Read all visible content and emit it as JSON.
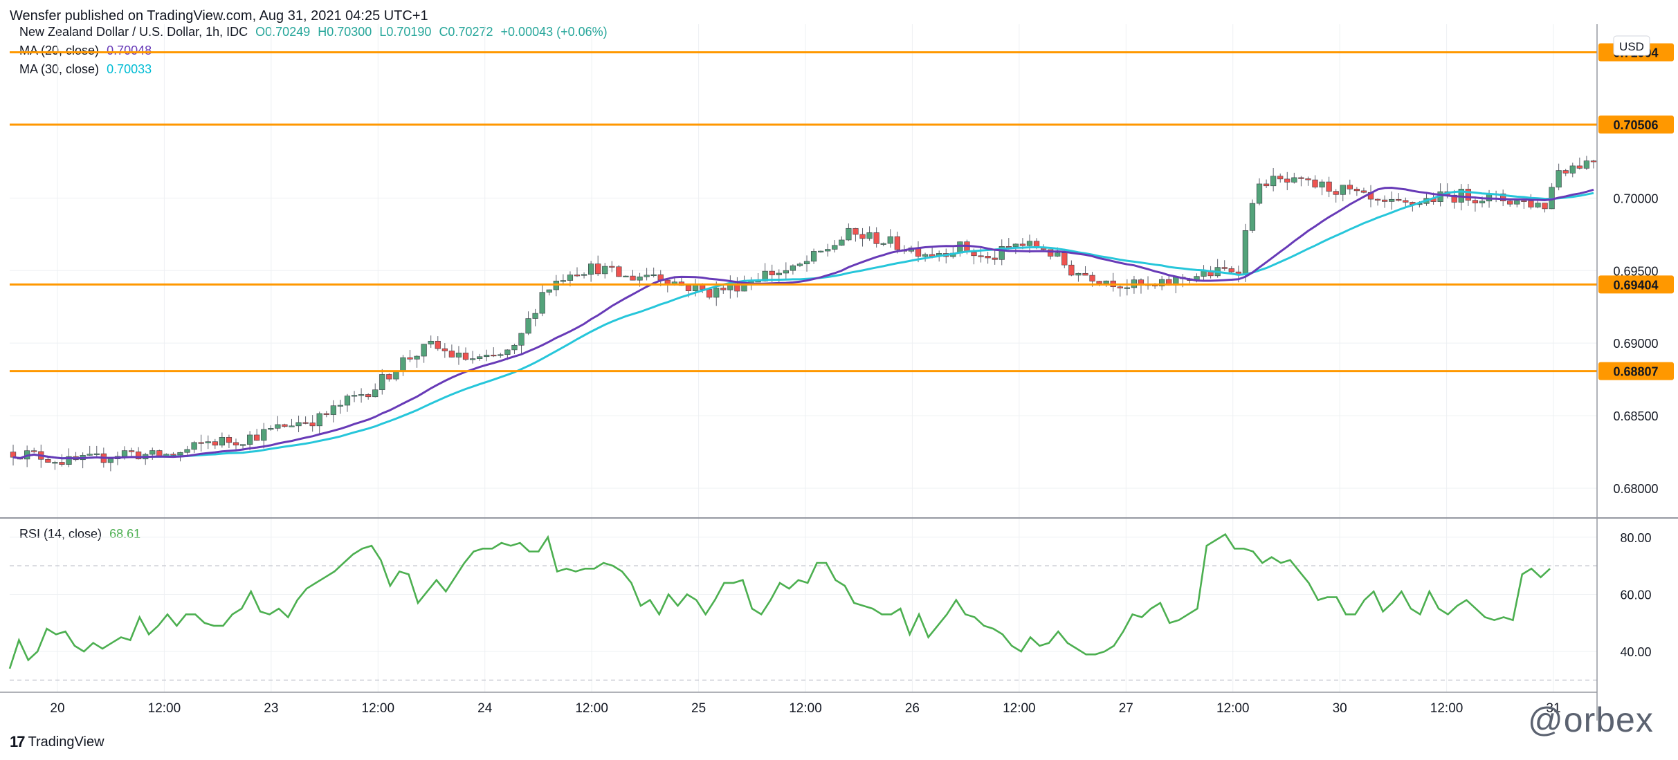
{
  "publisher_text": "Wensfer published on TradingView.com, Aug 31, 2021 04:25 UTC+1",
  "footer_brand": "TradingView",
  "watermark": "@orbex",
  "colors": {
    "up": "#53a37a",
    "down": "#ef5350",
    "ma20": "#673ab7",
    "ma30": "#26c6da",
    "level": "#ff9800",
    "rsi": "#4caf50",
    "grid": "#eef0f3",
    "axis_text": "#131722"
  },
  "chart_data": {
    "type": "candlestick",
    "symbol_header": {
      "name": "New Zealand Dollar / U.S. Dollar, 1h, IDC",
      "open": "O0.70249",
      "high": "H0.70300",
      "low": "L0.70190",
      "close": "C0.70272",
      "change": "+0.00043 (+0.06%)"
    },
    "currency": "USD",
    "price_axis": {
      "min": 0.678,
      "max": 0.7115,
      "ticks": [
        "0.70000",
        "0.69500",
        "0.69000",
        "0.68500",
        "0.68000"
      ]
    },
    "time_labels": [
      "20",
      "12:00",
      "23",
      "12:00",
      "24",
      "12:00",
      "25",
      "12:00",
      "26",
      "12:00",
      "27",
      "12:00",
      "30",
      "12:00",
      "31"
    ],
    "indicators": [
      {
        "name": "MA (20, close)",
        "value": "0.70048",
        "color": "#673ab7"
      },
      {
        "name": "MA (30, close)",
        "value": "0.70033",
        "color": "#26c6da"
      }
    ],
    "horizontal_levels": [
      "0.71004",
      "0.70506",
      "0.69404",
      "0.68807"
    ],
    "close_path": [
      [
        0,
        0.6825
      ],
      [
        4,
        0.6822
      ],
      [
        8,
        0.6818
      ],
      [
        12,
        0.682
      ],
      [
        16,
        0.6825
      ],
      [
        20,
        0.6822
      ],
      [
        24,
        0.6824
      ],
      [
        28,
        0.6832
      ],
      [
        32,
        0.6833
      ],
      [
        36,
        0.6838
      ],
      [
        40,
        0.6845
      ],
      [
        44,
        0.6848
      ],
      [
        48,
        0.686
      ],
      [
        52,
        0.687
      ],
      [
        56,
        0.6888
      ],
      [
        60,
        0.6898
      ],
      [
        64,
        0.689
      ],
      [
        68,
        0.6888
      ],
      [
        72,
        0.6895
      ],
      [
        76,
        0.6935
      ],
      [
        80,
        0.695
      ],
      [
        84,
        0.6952
      ],
      [
        88,
        0.6945
      ],
      [
        92,
        0.6948
      ],
      [
        96,
        0.694
      ],
      [
        100,
        0.6935
      ],
      [
        104,
        0.694
      ],
      [
        108,
        0.6948
      ],
      [
        112,
        0.695
      ],
      [
        116,
        0.6962
      ],
      [
        120,
        0.6975
      ],
      [
        124,
        0.6972
      ],
      [
        128,
        0.6966
      ],
      [
        132,
        0.6962
      ],
      [
        136,
        0.6966
      ],
      [
        140,
        0.6957
      ],
      [
        144,
        0.6968
      ],
      [
        148,
        0.6966
      ],
      [
        152,
        0.695
      ],
      [
        156,
        0.6945
      ],
      [
        160,
        0.694
      ],
      [
        164,
        0.6938
      ],
      [
        168,
        0.6945
      ],
      [
        172,
        0.6948
      ],
      [
        176,
        0.6952
      ],
      [
        178,
        0.7
      ],
      [
        180,
        0.7012
      ],
      [
        184,
        0.701
      ],
      [
        188,
        0.7008
      ],
      [
        192,
        0.7004
      ],
      [
        196,
        0.6995
      ],
      [
        200,
        0.6995
      ],
      [
        204,
        0.7
      ],
      [
        208,
        0.7002
      ],
      [
        212,
        0.7
      ],
      [
        216,
        0.6998
      ],
      [
        220,
        0.6995
      ],
      [
        222,
        0.702
      ],
      [
        224,
        0.7022
      ],
      [
        226,
        0.7025
      ],
      [
        227,
        0.7027
      ]
    ],
    "rsi": {
      "label": "RSI (14, close)",
      "value": "68.61",
      "ticks": [
        "80.00",
        "60.00",
        "40.00"
      ],
      "path": [
        [
          0,
          34
        ],
        [
          2,
          44
        ],
        [
          4,
          37
        ],
        [
          6,
          40
        ],
        [
          8,
          48
        ],
        [
          10,
          46
        ],
        [
          12,
          47
        ],
        [
          14,
          42
        ],
        [
          16,
          40
        ],
        [
          18,
          43
        ],
        [
          20,
          41
        ],
        [
          22,
          43
        ],
        [
          24,
          45
        ],
        [
          26,
          44
        ],
        [
          28,
          52
        ],
        [
          30,
          46
        ],
        [
          32,
          49
        ],
        [
          34,
          53
        ],
        [
          36,
          49
        ],
        [
          38,
          53
        ],
        [
          40,
          53
        ],
        [
          42,
          50
        ],
        [
          44,
          49
        ],
        [
          46,
          49
        ],
        [
          48,
          53
        ],
        [
          50,
          55
        ],
        [
          52,
          61
        ],
        [
          54,
          54
        ],
        [
          56,
          53
        ],
        [
          58,
          55
        ],
        [
          60,
          52
        ],
        [
          62,
          58
        ],
        [
          64,
          62
        ],
        [
          66,
          64
        ],
        [
          68,
          66
        ],
        [
          70,
          68
        ],
        [
          72,
          71
        ],
        [
          74,
          74
        ],
        [
          76,
          76
        ],
        [
          78,
          77
        ],
        [
          80,
          72
        ],
        [
          82,
          63
        ],
        [
          84,
          68
        ],
        [
          86,
          67
        ],
        [
          88,
          57
        ],
        [
          90,
          61
        ],
        [
          92,
          65
        ],
        [
          94,
          61
        ],
        [
          96,
          66
        ],
        [
          98,
          71
        ],
        [
          100,
          75
        ],
        [
          102,
          76
        ],
        [
          104,
          76
        ],
        [
          106,
          78
        ],
        [
          108,
          77
        ],
        [
          110,
          78
        ],
        [
          112,
          75
        ],
        [
          114,
          75
        ],
        [
          116,
          80
        ],
        [
          118,
          68
        ],
        [
          120,
          69
        ],
        [
          122,
          68
        ],
        [
          124,
          69
        ],
        [
          126,
          69
        ],
        [
          128,
          71
        ],
        [
          130,
          70
        ],
        [
          132,
          68
        ],
        [
          134,
          64
        ],
        [
          136,
          56
        ],
        [
          138,
          58
        ],
        [
          140,
          53
        ],
        [
          142,
          60
        ],
        [
          144,
          56
        ],
        [
          146,
          60
        ],
        [
          148,
          58
        ],
        [
          150,
          53
        ],
        [
          152,
          58
        ],
        [
          154,
          64
        ],
        [
          156,
          64
        ],
        [
          158,
          65
        ],
        [
          160,
          55
        ],
        [
          162,
          53
        ],
        [
          164,
          58
        ],
        [
          166,
          64
        ],
        [
          168,
          62
        ],
        [
          170,
          65
        ],
        [
          172,
          64
        ],
        [
          174,
          71
        ],
        [
          176,
          71
        ],
        [
          178,
          65
        ],
        [
          180,
          63
        ],
        [
          182,
          57
        ],
        [
          184,
          56
        ],
        [
          186,
          55
        ],
        [
          188,
          53
        ],
        [
          190,
          53
        ],
        [
          192,
          55
        ],
        [
          194,
          46
        ],
        [
          196,
          53
        ],
        [
          198,
          45
        ],
        [
          200,
          49
        ],
        [
          202,
          53
        ],
        [
          204,
          58
        ],
        [
          206,
          53
        ],
        [
          208,
          52
        ],
        [
          210,
          49
        ],
        [
          212,
          48
        ],
        [
          214,
          46
        ],
        [
          216,
          42
        ],
        [
          218,
          40
        ],
        [
          220,
          45
        ],
        [
          222,
          42
        ],
        [
          224,
          43
        ],
        [
          226,
          47
        ],
        [
          228,
          43
        ],
        [
          230,
          41
        ],
        [
          232,
          39
        ],
        [
          234,
          39
        ],
        [
          236,
          40
        ],
        [
          238,
          42
        ],
        [
          240,
          47
        ],
        [
          242,
          53
        ],
        [
          244,
          52
        ],
        [
          246,
          55
        ],
        [
          248,
          57
        ],
        [
          250,
          50
        ],
        [
          252,
          51
        ],
        [
          254,
          53
        ],
        [
          256,
          55
        ],
        [
          258,
          77
        ],
        [
          260,
          79
        ],
        [
          262,
          81
        ],
        [
          264,
          76
        ],
        [
          266,
          76
        ],
        [
          268,
          75
        ],
        [
          270,
          71
        ],
        [
          272,
          73
        ],
        [
          274,
          71
        ],
        [
          276,
          72
        ],
        [
          278,
          68
        ],
        [
          280,
          64
        ],
        [
          282,
          58
        ],
        [
          284,
          59
        ],
        [
          286,
          59
        ],
        [
          288,
          53
        ],
        [
          290,
          53
        ],
        [
          292,
          58
        ],
        [
          294,
          61
        ],
        [
          296,
          54
        ],
        [
          298,
          57
        ],
        [
          300,
          61
        ],
        [
          302,
          55
        ],
        [
          304,
          53
        ],
        [
          306,
          61
        ],
        [
          308,
          55
        ],
        [
          310,
          53
        ],
        [
          312,
          56
        ],
        [
          314,
          58
        ],
        [
          316,
          55
        ],
        [
          318,
          52
        ],
        [
          320,
          51
        ],
        [
          322,
          52
        ],
        [
          324,
          51
        ],
        [
          326,
          67
        ],
        [
          328,
          69
        ],
        [
          330,
          66
        ],
        [
          332,
          69
        ]
      ]
    }
  }
}
